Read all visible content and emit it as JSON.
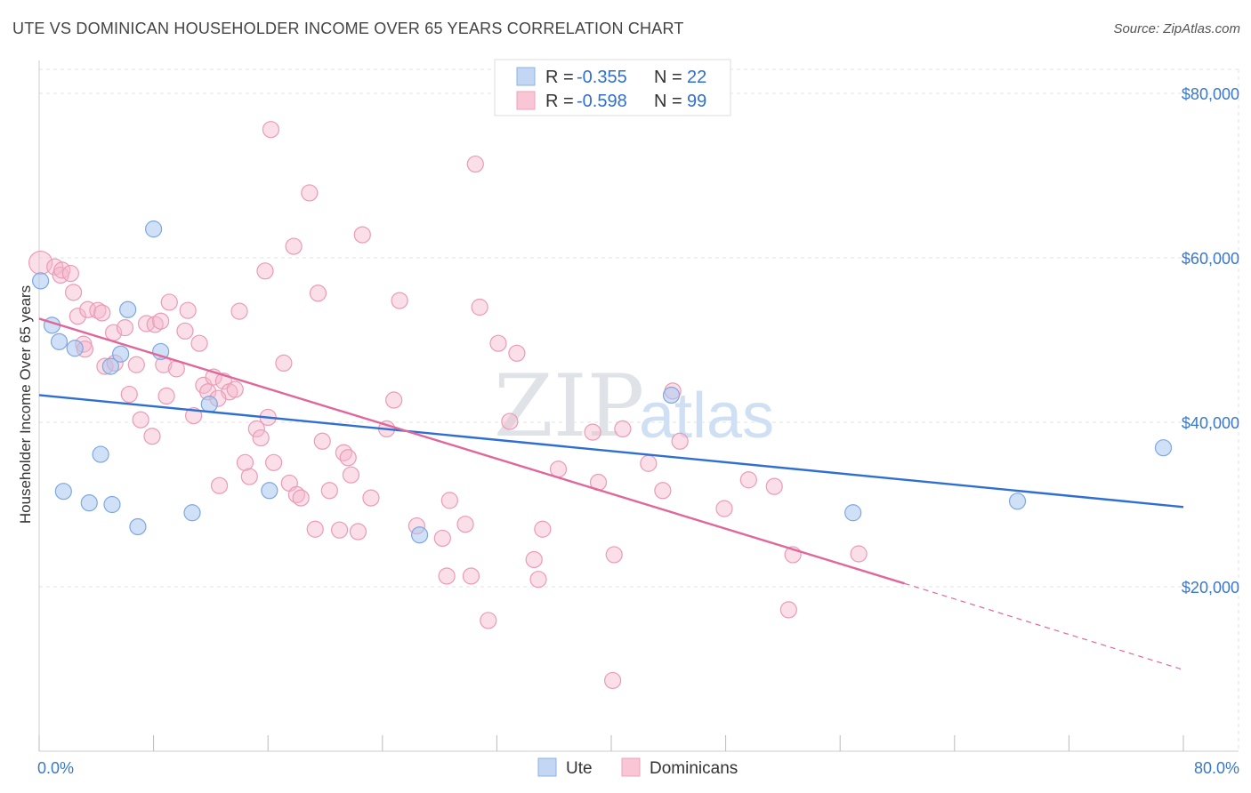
{
  "header": {
    "title": "UTE VS DOMINICAN HOUSEHOLDER INCOME OVER 65 YEARS CORRELATION CHART",
    "source": "Source: ZipAtlas.com"
  },
  "watermark": {
    "zip": "ZIP",
    "atlas": "atlas"
  },
  "legend": {
    "r_label": "R =",
    "n_label": "N =",
    "entries": [
      {
        "name": "Ute",
        "r": "-0.355",
        "n": "22"
      },
      {
        "name": "Dominicans",
        "r": "-0.598",
        "n": "99"
      }
    ]
  },
  "chart_data": {
    "type": "scatter",
    "title": "UTE VS DOMINICAN HOUSEHOLDER INCOME OVER 65 YEARS CORRELATION CHART",
    "ylabel": "Householder Income Over 65 years",
    "xlim": [
      0,
      80
    ],
    "ylim": [
      0,
      84000
    ],
    "y_ticks": [
      {
        "value": 20000,
        "label": "$20,000"
      },
      {
        "value": 40000,
        "label": "$40,000"
      },
      {
        "value": 60000,
        "label": "$60,000"
      },
      {
        "value": 80000,
        "label": "$80,000"
      }
    ],
    "x_tick_labels": [
      {
        "value": 0,
        "label": "0.0%"
      },
      {
        "value": 80,
        "label": "80.0%"
      }
    ],
    "grid": true,
    "colors": {
      "ute": "#a9c7ef",
      "ute_line": "#2f6fd1",
      "dom": "#f5b8cb",
      "dom_line": "#e0679a"
    },
    "series": [
      {
        "name": "Ute",
        "points": [
          [
            0.1,
            57200
          ],
          [
            0.9,
            51800
          ],
          [
            1.4,
            49800
          ],
          [
            1.7,
            31600
          ],
          [
            2.5,
            49000
          ],
          [
            3.5,
            30200
          ],
          [
            4.3,
            36100
          ],
          [
            5.1,
            30000
          ],
          [
            5.7,
            48300
          ],
          [
            5.0,
            46800
          ],
          [
            6.2,
            53700
          ],
          [
            6.9,
            27300
          ],
          [
            8.0,
            63500
          ],
          [
            8.5,
            48600
          ],
          [
            10.7,
            29000
          ],
          [
            11.9,
            42200
          ],
          [
            16.1,
            31700
          ],
          [
            26.6,
            26300
          ],
          [
            44.2,
            43300
          ],
          [
            56.9,
            29000
          ],
          [
            68.4,
            30400
          ],
          [
            78.6,
            36900
          ]
        ],
        "trend": {
          "x0": 0,
          "y0": 43300,
          "x1": 80,
          "y1": 29700
        }
      },
      {
        "name": "Dominicans",
        "points": [
          [
            0.1,
            59400
          ],
          [
            1.1,
            58900
          ],
          [
            1.5,
            57900
          ],
          [
            1.6,
            58500
          ],
          [
            2.2,
            58100
          ],
          [
            2.4,
            55800
          ],
          [
            2.7,
            52900
          ],
          [
            3.1,
            49500
          ],
          [
            3.2,
            48900
          ],
          [
            3.4,
            53700
          ],
          [
            4.1,
            53600
          ],
          [
            4.4,
            53300
          ],
          [
            4.6,
            46800
          ],
          [
            5.2,
            50900
          ],
          [
            5.3,
            47200
          ],
          [
            6.0,
            51500
          ],
          [
            6.3,
            43400
          ],
          [
            6.8,
            47000
          ],
          [
            7.1,
            40300
          ],
          [
            7.5,
            52000
          ],
          [
            7.9,
            38300
          ],
          [
            8.1,
            51900
          ],
          [
            8.5,
            52300
          ],
          [
            8.7,
            47000
          ],
          [
            8.9,
            43200
          ],
          [
            9.1,
            54600
          ],
          [
            9.6,
            46500
          ],
          [
            10.2,
            51100
          ],
          [
            10.4,
            53600
          ],
          [
            10.8,
            40800
          ],
          [
            11.2,
            49600
          ],
          [
            11.5,
            44500
          ],
          [
            11.8,
            43700
          ],
          [
            12.2,
            45500
          ],
          [
            12.6,
            32300
          ],
          [
            12.9,
            45000
          ],
          [
            13.3,
            43700
          ],
          [
            13.7,
            44000
          ],
          [
            14.0,
            53500
          ],
          [
            14.4,
            35100
          ],
          [
            14.7,
            33400
          ],
          [
            15.2,
            39200
          ],
          [
            15.5,
            38100
          ],
          [
            15.8,
            58400
          ],
          [
            16.2,
            75600
          ],
          [
            16.4,
            35100
          ],
          [
            17.1,
            47200
          ],
          [
            17.5,
            32600
          ],
          [
            17.8,
            61400
          ],
          [
            18.0,
            31200
          ],
          [
            18.3,
            30800
          ],
          [
            18.9,
            67900
          ],
          [
            19.3,
            27000
          ],
          [
            19.5,
            55700
          ],
          [
            19.8,
            37700
          ],
          [
            20.3,
            31700
          ],
          [
            21.0,
            26900
          ],
          [
            21.3,
            36300
          ],
          [
            21.6,
            35700
          ],
          [
            21.8,
            33600
          ],
          [
            22.3,
            26700
          ],
          [
            22.6,
            62800
          ],
          [
            23.2,
            30800
          ],
          [
            24.3,
            39200
          ],
          [
            24.8,
            42700
          ],
          [
            25.2,
            54800
          ],
          [
            26.4,
            27400
          ],
          [
            28.2,
            25900
          ],
          [
            28.5,
            21300
          ],
          [
            28.7,
            30500
          ],
          [
            29.8,
            27600
          ],
          [
            30.2,
            21300
          ],
          [
            30.5,
            71400
          ],
          [
            30.8,
            54000
          ],
          [
            31.4,
            15900
          ],
          [
            32.1,
            49600
          ],
          [
            32.9,
            40100
          ],
          [
            33.4,
            48400
          ],
          [
            34.6,
            23300
          ],
          [
            34.9,
            20900
          ],
          [
            35.2,
            27000
          ],
          [
            36.3,
            34300
          ],
          [
            38.7,
            38800
          ],
          [
            39.1,
            32700
          ],
          [
            40.2,
            23900
          ],
          [
            40.1,
            8600
          ],
          [
            40.8,
            39200
          ],
          [
            42.6,
            35000
          ],
          [
            43.6,
            31700
          ],
          [
            44.3,
            43800
          ],
          [
            44.8,
            37700
          ],
          [
            47.9,
            29500
          ],
          [
            49.6,
            33000
          ],
          [
            51.4,
            32200
          ],
          [
            52.4,
            17200
          ],
          [
            52.7,
            23900
          ],
          [
            57.3,
            24000
          ],
          [
            16.0,
            40600
          ],
          [
            12.5,
            42900
          ]
        ],
        "trend": {
          "x0": 0,
          "y0": 52600,
          "x1": 60.5,
          "y1": 20400,
          "dash_x1": 80,
          "dash_y1": 9900
        }
      }
    ]
  }
}
